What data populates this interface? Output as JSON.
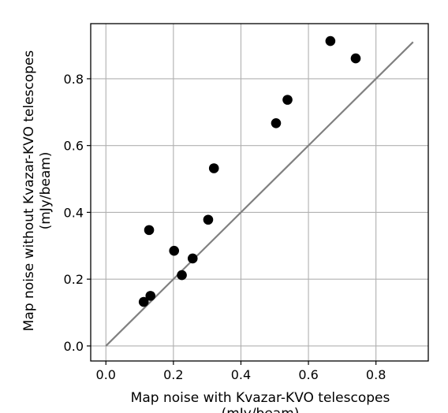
{
  "chart_data": {
    "type": "scatter",
    "title": "",
    "xlabel": "Map noise with Kvazar-KVO telescopes",
    "xlabel_line2": "(mJy/beam)",
    "ylabel": "Map noise without Kvazar-KVO telescopes",
    "ylabel_line2": "(mJy/beam)",
    "xlim": [
      -0.045,
      0.955
    ],
    "ylim": [
      -0.045,
      0.965
    ],
    "xticks": [
      0.0,
      0.2,
      0.4,
      0.6,
      0.8
    ],
    "yticks": [
      0.0,
      0.2,
      0.4,
      0.6,
      0.8
    ],
    "xtick_labels": [
      "0.0",
      "0.2",
      "0.4",
      "0.6",
      "0.8"
    ],
    "ytick_labels": [
      "0.0",
      "0.2",
      "0.4",
      "0.6",
      "0.8"
    ],
    "grid": true,
    "legend": "none",
    "points": [
      {
        "x": 0.112,
        "y": 0.132
      },
      {
        "x": 0.132,
        "y": 0.15
      },
      {
        "x": 0.128,
        "y": 0.347
      },
      {
        "x": 0.202,
        "y": 0.285
      },
      {
        "x": 0.225,
        "y": 0.212
      },
      {
        "x": 0.257,
        "y": 0.262
      },
      {
        "x": 0.303,
        "y": 0.378
      },
      {
        "x": 0.32,
        "y": 0.532
      },
      {
        "x": 0.504,
        "y": 0.667
      },
      {
        "x": 0.538,
        "y": 0.737
      },
      {
        "x": 0.665,
        "y": 0.913
      },
      {
        "x": 0.74,
        "y": 0.861
      }
    ],
    "reference_line": {
      "x": [
        0.0,
        0.91
      ],
      "y": [
        0.0,
        0.91
      ],
      "color": "#808080"
    },
    "marker_color": "#000000",
    "grid_color": "#b0b0b0"
  }
}
